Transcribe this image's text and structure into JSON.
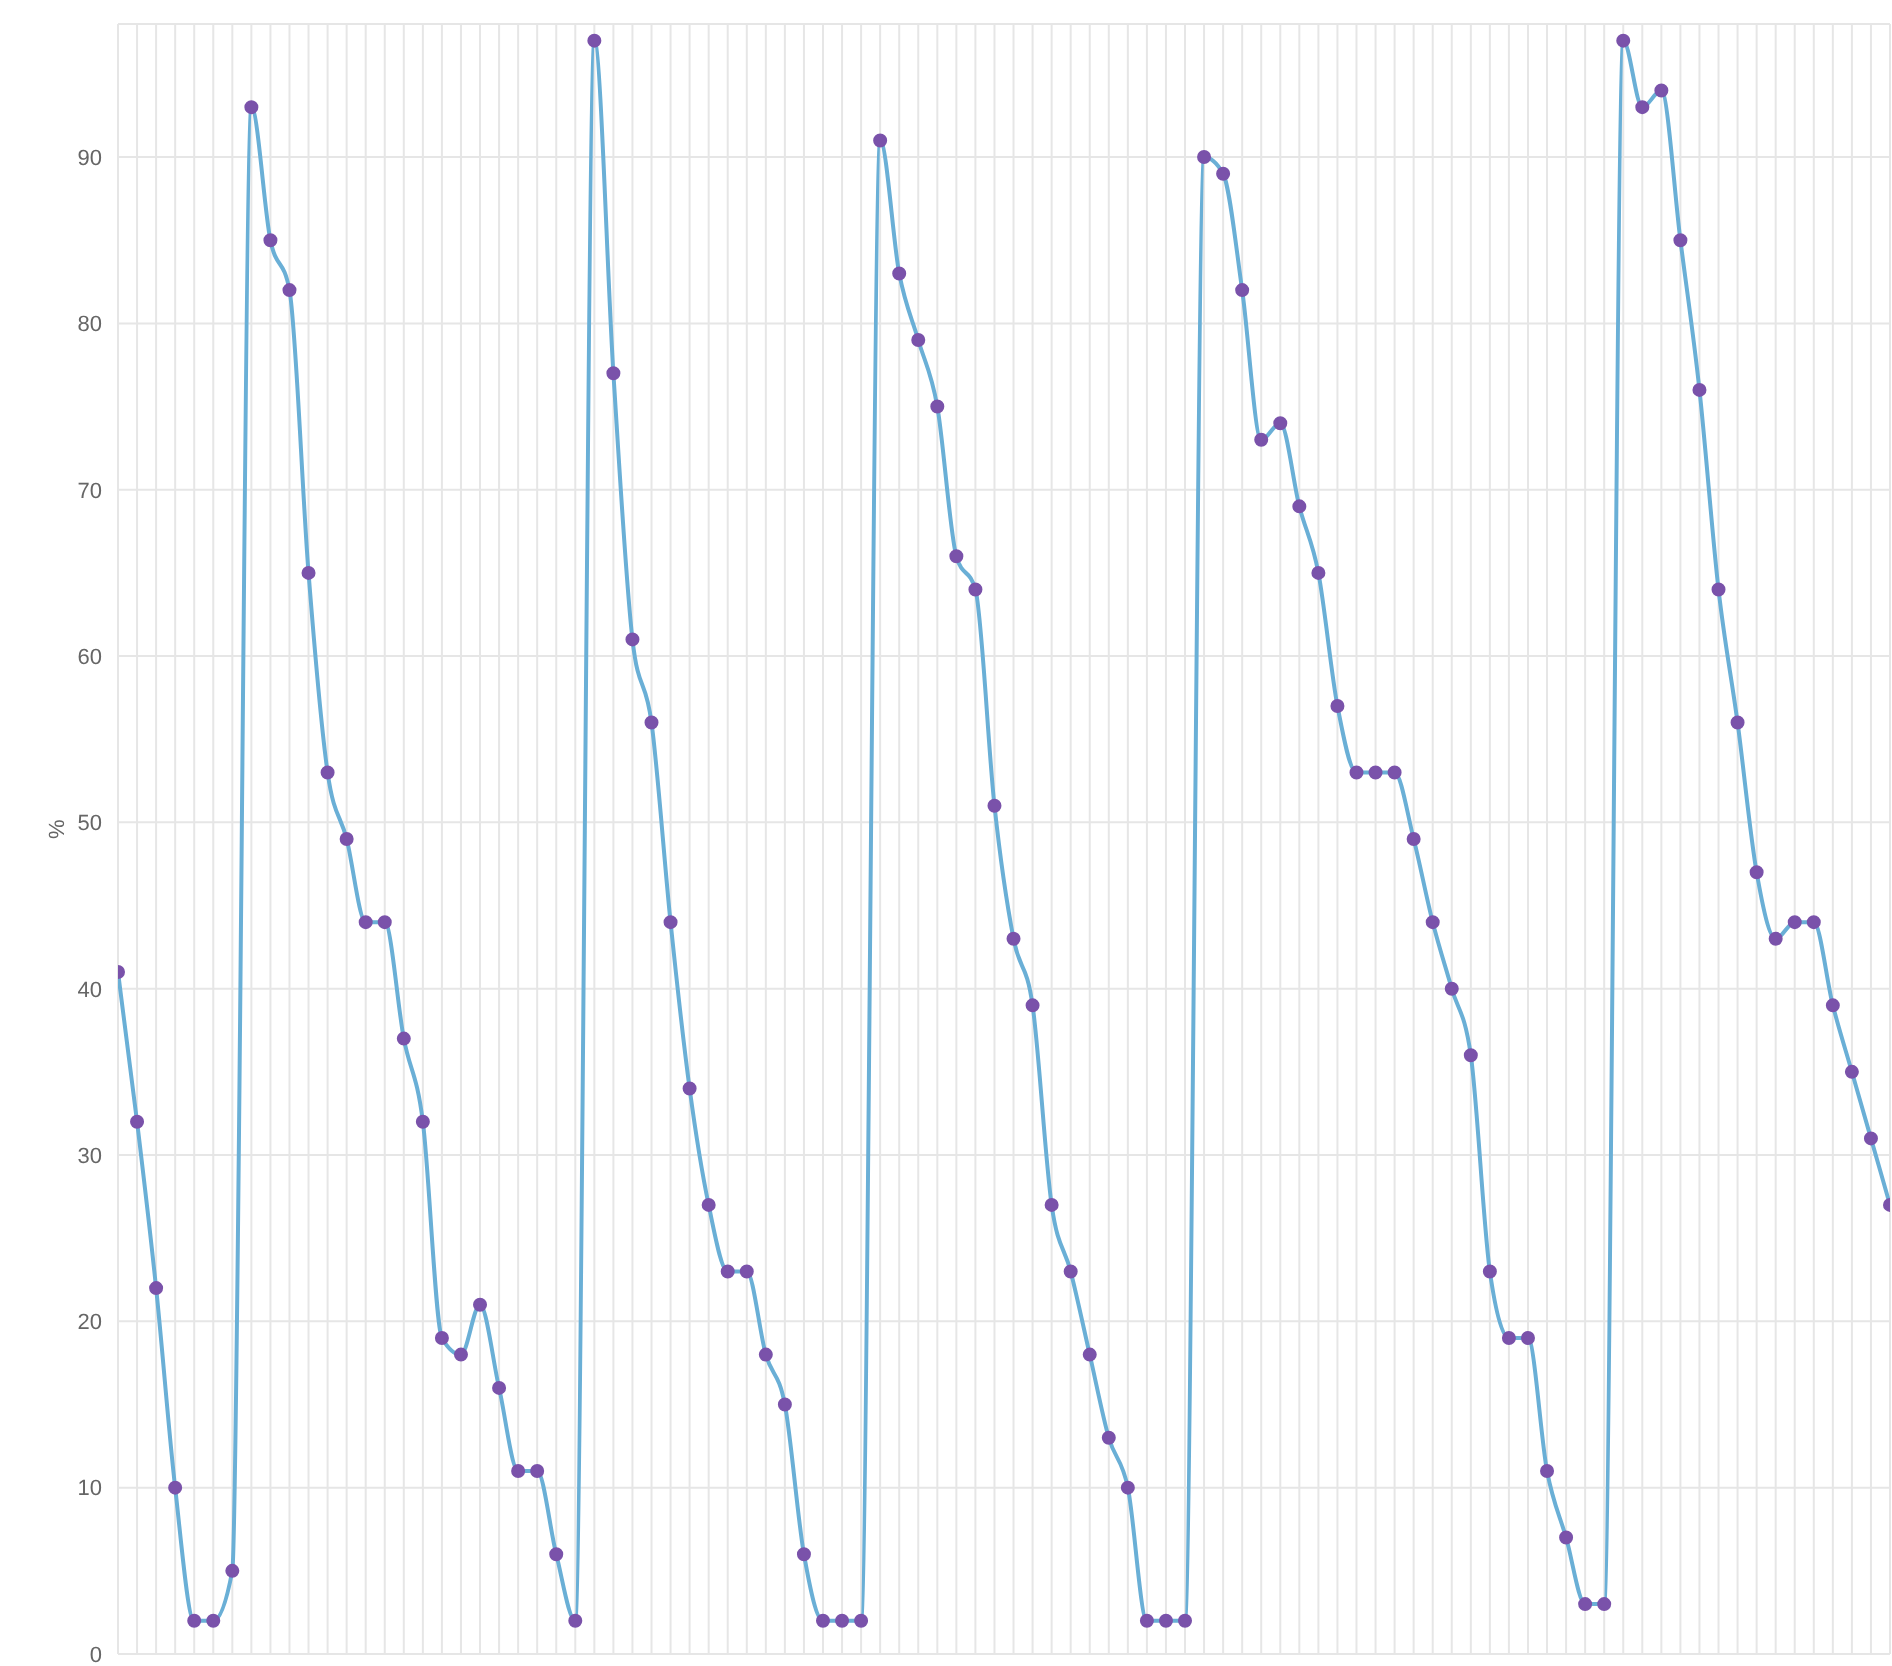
{
  "chart_data": {
    "type": "line",
    "ylabel": "%",
    "categories": [
      null,
      null,
      null,
      null,
      null,
      null,
      null,
      null,
      null,
      null,
      null,
      null,
      null,
      null,
      null,
      null,
      null,
      null,
      null,
      null,
      null,
      null,
      null,
      null,
      null,
      null,
      null,
      null,
      null,
      null,
      null,
      null,
      null,
      null,
      null,
      null,
      null,
      null,
      null,
      null,
      null,
      null,
      null,
      null,
      null,
      null,
      null,
      null,
      null,
      null,
      null,
      null,
      null,
      null,
      null,
      null,
      null,
      null,
      null,
      null,
      null,
      null,
      null,
      null,
      null,
      null,
      null,
      null,
      null,
      null,
      null,
      null,
      null,
      null,
      null,
      null,
      null,
      null,
      null,
      null,
      null,
      null,
      null,
      null,
      null,
      null,
      null,
      null,
      null,
      null,
      null,
      null,
      null,
      null
    ],
    "series": [
      {
        "color": "#6aafd6",
        "values": [
          41,
          32,
          22,
          10,
          2,
          2,
          5,
          93,
          85,
          82,
          65,
          53,
          49,
          44,
          44,
          37,
          32,
          19,
          18,
          21,
          16,
          11,
          11,
          6,
          2,
          97,
          77,
          61,
          56,
          44,
          34,
          27,
          23,
          23,
          18,
          15,
          6,
          2,
          2,
          2,
          91,
          83,
          79,
          75,
          66,
          64,
          51,
          43,
          39,
          27,
          23,
          18,
          13,
          10,
          2,
          2,
          2,
          90,
          89,
          82,
          73,
          74,
          69,
          65,
          57,
          53,
          53,
          53,
          49,
          44,
          40,
          36,
          23,
          19,
          19,
          11,
          7,
          3,
          3,
          97,
          93,
          94,
          85,
          76,
          64,
          56,
          47,
          43,
          44,
          44,
          39,
          35,
          31,
          27
        ]
      }
    ],
    "ylim": [
      0,
      98
    ],
    "yticks": [
      0,
      10,
      20,
      30,
      40,
      50,
      60,
      70,
      80,
      90
    ],
    "grid": true,
    "marker": "circle",
    "line_style": "solid",
    "tick_labels": "y"
  }
}
